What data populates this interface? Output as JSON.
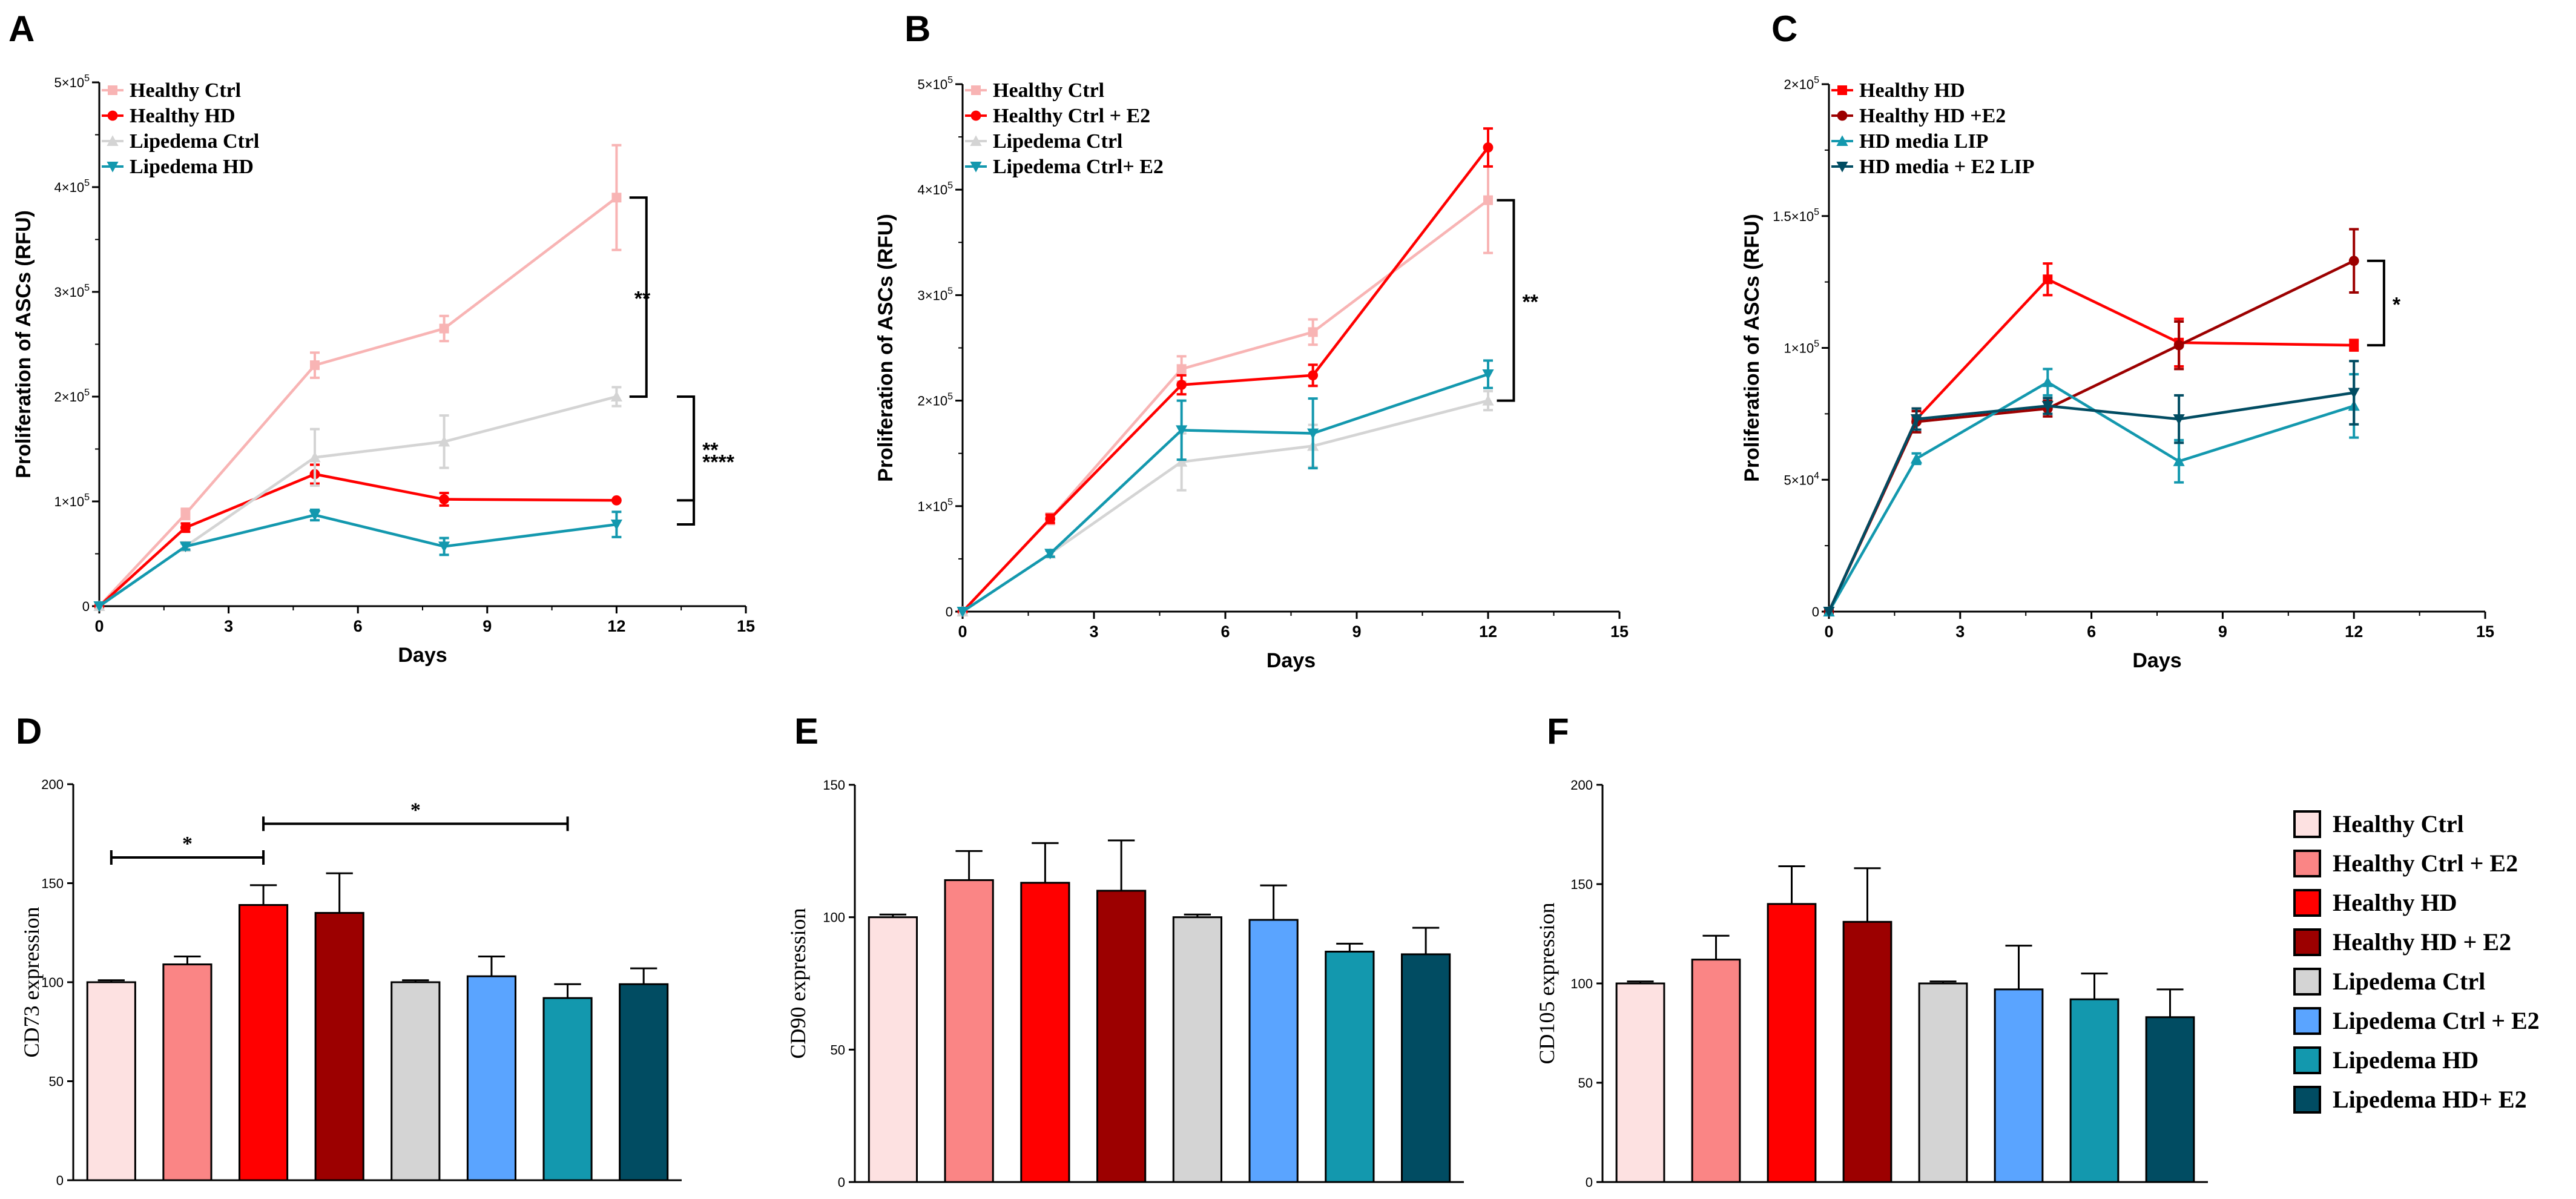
{
  "colors": {
    "healthy_ctrl": "#f8b4b4",
    "healthy_ctrl_e2": "#fa8585",
    "healthy_hd": "#ff0000",
    "healthy_hd_e2": "#9c0000",
    "lipedema_ctrl": "#d4d4d4",
    "lipedema_ctrl_e2": "#5aa4ff",
    "lipedema_hd": "#1398ae",
    "lipedema_hd_e2": "#014c62",
    "healthy_ctrl_bar": "#fde1e1"
  },
  "chart_data": [
    {
      "id": "A",
      "panel_label": "A",
      "type": "line",
      "xlabel": "Days",
      "ylabel": "Proliferation of ASCs (RFU)",
      "xlim": [
        0,
        15
      ],
      "ylim": [
        0,
        500000
      ],
      "xticks": [
        "0",
        "3",
        "6",
        "9",
        "12",
        "15"
      ],
      "yticks": [
        {
          "value": 0,
          "mant": "0",
          "exp": ""
        },
        {
          "value": 100000,
          "mant": "1×10",
          "exp": "5"
        },
        {
          "value": 200000,
          "mant": "2×10",
          "exp": "5"
        },
        {
          "value": 300000,
          "mant": "3×10",
          "exp": "5"
        },
        {
          "value": 400000,
          "mant": "4×10",
          "exp": "5"
        },
        {
          "value": 500000,
          "mant": "5×10",
          "exp": "5"
        }
      ],
      "series": [
        {
          "name": "Healthy Ctrl",
          "color": "#f8b4b4",
          "marker": "square",
          "x": [
            0,
            2,
            5,
            8,
            12
          ],
          "y": [
            0,
            88000,
            230000,
            265000,
            390000
          ],
          "err": [
            0,
            5000,
            12000,
            12000,
            50000
          ]
        },
        {
          "name": "Healthy HD",
          "color": "#ff0000",
          "marker": "circle",
          "x": [
            0,
            2,
            5,
            8,
            12
          ],
          "y": [
            0,
            75000,
            126000,
            102000,
            101000
          ],
          "err": [
            0,
            4000,
            9000,
            6000,
            0
          ]
        },
        {
          "name": "Lipedema Ctrl",
          "color": "#d4d4d4",
          "marker": "triangle-up",
          "x": [
            0,
            2,
            5,
            8,
            12
          ],
          "y": [
            0,
            57000,
            142000,
            157000,
            200000
          ],
          "err": [
            0,
            4000,
            27000,
            25000,
            9000
          ]
        },
        {
          "name": "Lipedema HD",
          "color": "#1398ae",
          "marker": "triangle-down",
          "x": [
            0,
            2,
            5,
            8,
            12
          ],
          "y": [
            0,
            57000,
            87000,
            57000,
            78000
          ],
          "err": [
            0,
            3000,
            5000,
            8000,
            12000
          ]
        }
      ],
      "annotations": [
        {
          "label": "**",
          "x": 12.3,
          "y1": 390000,
          "y2": 200000,
          "sx": 12.8,
          "side": "left"
        },
        {
          "label": "**",
          "x": 13.4,
          "y1": 200000,
          "y2": 101000,
          "sx": 13.1,
          "side": "right"
        },
        {
          "label": "****",
          "x": 13.4,
          "y1": 200000,
          "y2": 78000,
          "sx": 13.8,
          "side": "right"
        }
      ]
    },
    {
      "id": "B",
      "panel_label": "B",
      "type": "line",
      "xlabel": "Days",
      "ylabel": "Proliferation of ASCs (RFU)",
      "xlim": [
        0,
        15
      ],
      "ylim": [
        0,
        500000
      ],
      "xticks": [
        "0",
        "3",
        "6",
        "9",
        "12",
        "15"
      ],
      "yticks": [
        {
          "value": 0,
          "mant": "0",
          "exp": ""
        },
        {
          "value": 100000,
          "mant": "1×10",
          "exp": "5"
        },
        {
          "value": 200000,
          "mant": "2×10",
          "exp": "5"
        },
        {
          "value": 300000,
          "mant": "3×10",
          "exp": "5"
        },
        {
          "value": 400000,
          "mant": "4×10",
          "exp": "5"
        },
        {
          "value": 500000,
          "mant": "5×10",
          "exp": "5"
        }
      ],
      "series": [
        {
          "name": "Healthy Ctrl",
          "color": "#f8b4b4",
          "marker": "square",
          "x": [
            0,
            2,
            5,
            8,
            12
          ],
          "y": [
            0,
            88000,
            230000,
            265000,
            390000
          ],
          "err": [
            0,
            5000,
            12000,
            12000,
            50000
          ]
        },
        {
          "name": "Healthy Ctrl + E2",
          "color": "#ff0000",
          "marker": "circle",
          "x": [
            0,
            2,
            5,
            8,
            12
          ],
          "y": [
            0,
            88000,
            215000,
            224000,
            440000
          ],
          "err": [
            0,
            4000,
            9000,
            10000,
            18000
          ]
        },
        {
          "name": "Lipedema Ctrl",
          "color": "#d4d4d4",
          "marker": "triangle-up",
          "x": [
            0,
            2,
            5,
            8,
            12
          ],
          "y": [
            0,
            55000,
            142000,
            157000,
            200000
          ],
          "err": [
            0,
            3000,
            27000,
            20000,
            9000
          ]
        },
        {
          "name": "Lipedema Ctrl+ E2",
          "color": "#1398ae",
          "marker": "triangle-down",
          "x": [
            0,
            2,
            5,
            8,
            12
          ],
          "y": [
            0,
            55000,
            172000,
            169000,
            225000
          ],
          "err": [
            0,
            3000,
            28000,
            33000,
            13000
          ]
        }
      ],
      "annotations": [
        {
          "label": "**",
          "x": 12.2,
          "y1": 390000,
          "y2": 200000,
          "sx": 12.6,
          "side": "right"
        }
      ]
    },
    {
      "id": "C",
      "panel_label": "C",
      "type": "line",
      "xlabel": "Days",
      "ylabel": "Proliferation of ASCs (RFU)",
      "xlim": [
        0,
        15
      ],
      "ylim": [
        0,
        200000
      ],
      "xticks": [
        "0",
        "3",
        "6",
        "9",
        "12",
        "15"
      ],
      "yticks": [
        {
          "value": 0,
          "mant": "0",
          "exp": ""
        },
        {
          "value": 50000,
          "mant": "5×10",
          "exp": "4"
        },
        {
          "value": 100000,
          "mant": "1×10",
          "exp": "5"
        },
        {
          "value": 150000,
          "mant": "1.5×10",
          "exp": "5"
        },
        {
          "value": 200000,
          "mant": "2×10",
          "exp": "5"
        }
      ],
      "series": [
        {
          "name": "Healthy HD",
          "color": "#ff0000",
          "marker": "square",
          "x": [
            0,
            2,
            5,
            8,
            12
          ],
          "y": [
            0,
            73000,
            126000,
            102000,
            101000
          ],
          "err": [
            0,
            4000,
            6000,
            9000,
            2000
          ]
        },
        {
          "name": "Healthy HD +E2",
          "color": "#9c0000",
          "marker": "circle",
          "x": [
            0,
            2,
            5,
            8,
            12
          ],
          "y": [
            0,
            72000,
            77000,
            101000,
            133000
          ],
          "err": [
            0,
            4000,
            3000,
            9000,
            12000
          ]
        },
        {
          "name": "HD media LIP",
          "color": "#1398ae",
          "marker": "triangle-up",
          "x": [
            0,
            2,
            5,
            8,
            12
          ],
          "y": [
            0,
            58000,
            87000,
            57000,
            78000
          ],
          "err": [
            0,
            2000,
            5000,
            8000,
            12000
          ]
        },
        {
          "name": "HD media + E2 LIP",
          "color": "#014c62",
          "marker": "triangle-down",
          "x": [
            0,
            2,
            5,
            8,
            12
          ],
          "y": [
            0,
            73000,
            78000,
            73000,
            83000
          ],
          "err": [
            0,
            4000,
            3000,
            9000,
            12000
          ]
        }
      ],
      "annotations": [
        {
          "label": "*",
          "x": 12.3,
          "y1": 133000,
          "y2": 101000,
          "sx": 12.7,
          "side": "right"
        }
      ]
    },
    {
      "id": "D",
      "panel_label": "D",
      "type": "bar",
      "ylabel": "CD73 expression",
      "ylim": [
        0,
        200
      ],
      "yticks": [
        "0",
        "50",
        "100",
        "150",
        "200"
      ],
      "categories": [
        "Healthy Ctrl",
        "Healthy Ctrl + E2",
        "Healthy HD",
        "Healthy HD + E2",
        "Lipedema Ctrl",
        "Lipedema Ctrl + E2",
        "Lipedema HD",
        "Lipedema HD+ E2"
      ],
      "values": [
        100,
        109,
        139,
        135,
        100,
        103,
        92,
        99
      ],
      "err": [
        1,
        4,
        10,
        20,
        1,
        10,
        7,
        8
      ],
      "annotations": [
        {
          "label": "*",
          "from": 0,
          "to": 2,
          "y": 163
        },
        {
          "label": "*",
          "from": 2,
          "to": 6,
          "y": 180
        }
      ]
    },
    {
      "id": "E",
      "panel_label": "E",
      "type": "bar",
      "ylabel": "CD90 expression",
      "ylim": [
        0,
        150
      ],
      "yticks": [
        "0",
        "50",
        "100",
        "150"
      ],
      "categories": [
        "Healthy Ctrl",
        "Healthy Ctrl + E2",
        "Healthy HD",
        "Healthy HD + E2",
        "Lipedema Ctrl",
        "Lipedema Ctrl + E2",
        "Lipedema HD",
        "Lipedema HD+ E2"
      ],
      "values": [
        100,
        114,
        113,
        110,
        100,
        99,
        87,
        86
      ],
      "err": [
        1,
        11,
        15,
        19,
        1,
        13,
        3,
        10
      ],
      "annotations": []
    },
    {
      "id": "F",
      "panel_label": "F",
      "type": "bar",
      "ylabel": "CD105 expression",
      "ylim": [
        0,
        200
      ],
      "yticks": [
        "0",
        "50",
        "100",
        "150",
        "200"
      ],
      "categories": [
        "Healthy Ctrl",
        "Healthy Ctrl + E2",
        "Healthy HD",
        "Healthy HD + E2",
        "Lipedema Ctrl",
        "Lipedema Ctrl + E2",
        "Lipedema HD",
        "Lipedema HD+ E2"
      ],
      "values": [
        100,
        112,
        140,
        131,
        100,
        97,
        92,
        83
      ],
      "err": [
        1,
        12,
        19,
        27,
        1,
        22,
        13,
        14
      ],
      "annotations": []
    }
  ],
  "bar_legend": {
    "entries": [
      "Healthy Ctrl",
      "Healthy Ctrl + E2",
      "Healthy HD",
      "Healthy HD + E2",
      "Lipedema Ctrl",
      "Lipedema Ctrl + E2",
      "Lipedema HD",
      "Lipedema HD+ E2"
    ],
    "colors": [
      "#fde1e1",
      "#fa8585",
      "#ff0000",
      "#9c0000",
      "#d4d4d4",
      "#5aa4ff",
      "#1398ae",
      "#014c62"
    ]
  }
}
